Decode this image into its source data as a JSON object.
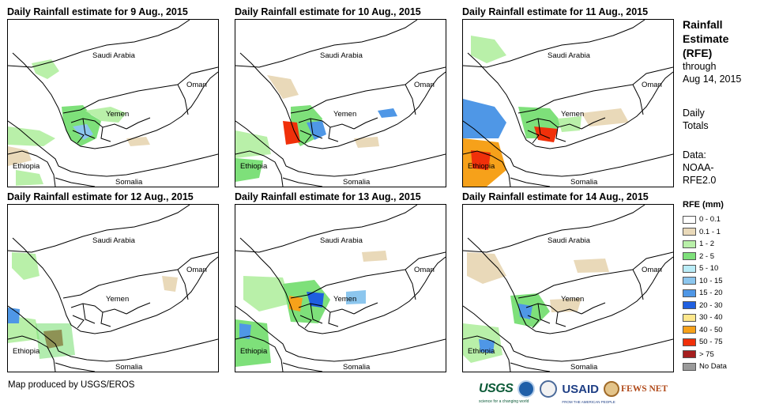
{
  "panels": [
    {
      "title": "Daily Rainfall estimate for 9 Aug., 2015"
    },
    {
      "title": "Daily Rainfall estimate for 10 Aug., 2015"
    },
    {
      "title": "Daily Rainfall estimate for 11 Aug., 2015"
    },
    {
      "title": "Daily Rainfall estimate for 12 Aug., 2015"
    },
    {
      "title": "Daily Rainfall estimate for 13 Aug., 2015"
    },
    {
      "title": "Daily Rainfall estimate for 14 Aug., 2015"
    }
  ],
  "map_labels": {
    "saudi": "Saudi Arabia",
    "oman": "Oman",
    "yemen": "Yemen",
    "ethiopia": "Ethiopia",
    "somalia": "Somalia"
  },
  "legend": {
    "title_line1": "Rainfall",
    "title_line2": "Estimate",
    "title_line3": "(RFE)",
    "through": "through",
    "date": "Aug 14, 2015",
    "daily": "Daily",
    "totals": "Totals",
    "data_label": "Data:",
    "source_line1": "NOAA-",
    "source_line2": "RFE2.0",
    "rfe_title": "RFE (mm)",
    "items": [
      {
        "label": "0 - 0.1",
        "color": "#ffffff"
      },
      {
        "label": "0.1 - 1",
        "color": "#e9d9b9"
      },
      {
        "label": "1 - 2",
        "color": "#b9f0a9"
      },
      {
        "label": "2 - 5",
        "color": "#7ee07a"
      },
      {
        "label": "5 - 10",
        "color": "#b9ecf7"
      },
      {
        "label": "10 - 15",
        "color": "#8cc6ee"
      },
      {
        "label": "15 - 20",
        "color": "#4f97e6"
      },
      {
        "label": "20 - 30",
        "color": "#1f5fe0"
      },
      {
        "label": "30 - 40",
        "color": "#fde78c"
      },
      {
        "label": "40 - 50",
        "color": "#f6a11a"
      },
      {
        "label": "50 - 75",
        "color": "#f0300a"
      },
      {
        "label": "> 75",
        "color": "#a51e1e"
      },
      {
        "label": "No Data",
        "color": "#9a9a9a"
      }
    ]
  },
  "credit": "Map produced by USGS/EROS",
  "logos": {
    "usgs": "USGS",
    "usgs_tagline": "science for a changing world",
    "usaid": "USAID",
    "usaid_tagline": "FROM THE AMERICAN PEOPLE",
    "fews": "FEWS NET"
  }
}
